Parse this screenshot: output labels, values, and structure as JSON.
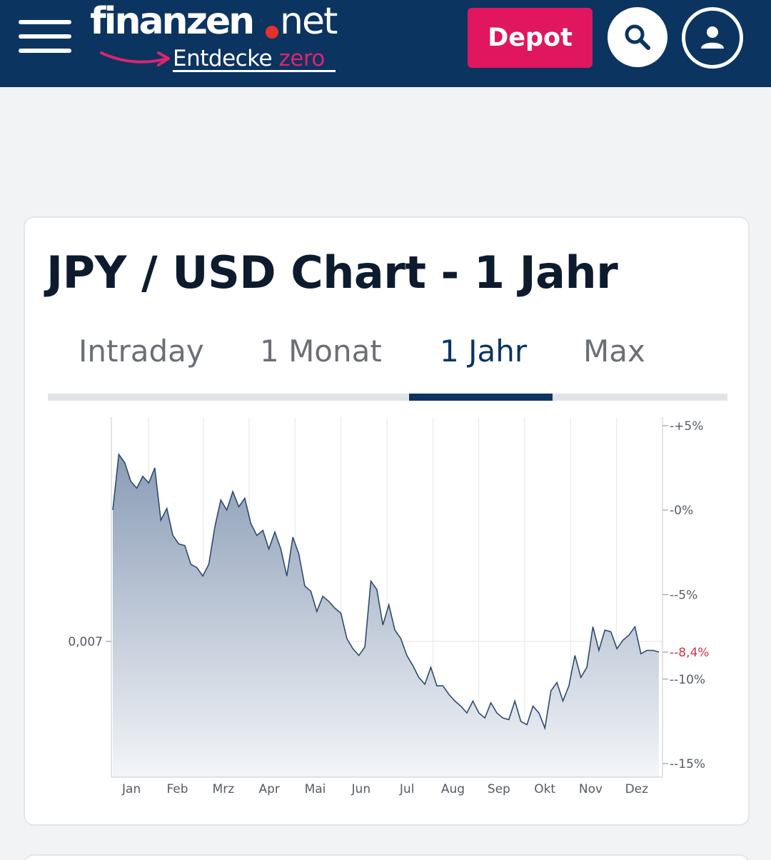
{
  "header": {
    "menu_icon": "hamburger-menu-icon",
    "logo": {
      "brand": "finanzen",
      "tld": "net",
      "tagline_prefix": "Entdecke ",
      "tagline_accent": "zero"
    },
    "depot_label": "Depot",
    "search_icon": "search-icon",
    "user_icon": "user-icon",
    "colors": {
      "bar": "#0b3461",
      "depot": "#e0175f",
      "accent": "#e4312b"
    }
  },
  "card": {
    "title": "JPY / USD Chart - 1 Jahr",
    "tabs": [
      {
        "label": "Intraday",
        "active": false
      },
      {
        "label": "1 Monat",
        "active": false
      },
      {
        "label": "1 Jahr",
        "active": true
      },
      {
        "label": "Max",
        "active": false
      }
    ]
  },
  "chart_data": {
    "type": "area",
    "title": "",
    "xlabel": "",
    "ylabel": "",
    "x_ticks": [
      "Jan",
      "Feb",
      "Mrz",
      "Apr",
      "Mai",
      "Jun",
      "Jul",
      "Aug",
      "Sep",
      "Okt",
      "Nov",
      "Dez"
    ],
    "left_ticks": [
      "0,007"
    ],
    "right_ticks": [
      "+5%",
      "0%",
      "-5%",
      "-10%",
      "-15%"
    ],
    "right_ylim": [
      -15.8,
      5.5
    ],
    "current_change_label": "-8,4%",
    "current_change": -8.4,
    "grid": true,
    "colors": {
      "line": "#2f4a6d",
      "fill_top": "#8a9cb6",
      "fill_bottom": "#f3f5f8",
      "current_label": "#d0344b"
    },
    "x": [
      "Jan 01",
      "Jan 04",
      "Jan 08",
      "Jan 12",
      "Jan 16",
      "Jan 20",
      "Jan 24",
      "Jan 28",
      "Feb 01",
      "Feb 05",
      "Feb 09",
      "Feb 13",
      "Feb 17",
      "Feb 21",
      "Feb 25",
      "Mrz 01",
      "Mrz 05",
      "Mrz 09",
      "Mrz 13",
      "Mrz 17",
      "Mrz 21",
      "Mrz 25",
      "Mrz 29",
      "Apr 02",
      "Apr 06",
      "Apr 10",
      "Apr 14",
      "Apr 18",
      "Apr 22",
      "Apr 26",
      "Apr 30",
      "Mai 04",
      "Mai 08",
      "Mai 12",
      "Mai 16",
      "Mai 20",
      "Mai 24",
      "Mai 28",
      "Jun 01",
      "Jun 05",
      "Jun 09",
      "Jun 13",
      "Jun 17",
      "Jun 21",
      "Jun 25",
      "Jun 29",
      "Jul 03",
      "Jul 07",
      "Jul 11",
      "Jul 15",
      "Jul 19",
      "Jul 23",
      "Jul 27",
      "Jul 31",
      "Aug 04",
      "Aug 08",
      "Aug 12",
      "Aug 16",
      "Aug 20",
      "Aug 24",
      "Aug 28",
      "Sep 01",
      "Sep 05",
      "Sep 09",
      "Sep 13",
      "Sep 17",
      "Sep 21",
      "Sep 25",
      "Sep 29",
      "Okt 03",
      "Okt 07",
      "Okt 11",
      "Okt 15",
      "Okt 19",
      "Okt 23",
      "Okt 27",
      "Okt 31",
      "Nov 04",
      "Nov 08",
      "Nov 12",
      "Nov 16",
      "Nov 20",
      "Nov 24",
      "Nov 28",
      "Dez 02",
      "Dez 06",
      "Dez 10",
      "Dez 14",
      "Dez 18",
      "Dez 22",
      "Dez 26",
      "Dez 29"
    ],
    "values": [
      0.0,
      3.3,
      2.8,
      1.7,
      1.3,
      2.0,
      1.6,
      2.5,
      -0.6,
      0.1,
      -1.5,
      -2.0,
      -2.1,
      -3.2,
      -3.4,
      -3.9,
      -3.2,
      -1.0,
      0.6,
      0.0,
      1.1,
      0.2,
      0.7,
      -0.8,
      -1.5,
      -1.2,
      -2.3,
      -1.3,
      -2.3,
      -3.9,
      -1.6,
      -2.6,
      -4.5,
      -4.8,
      -6.0,
      -5.1,
      -5.4,
      -5.8,
      -6.1,
      -7.6,
      -8.2,
      -8.6,
      -8.1,
      -4.2,
      -4.7,
      -6.8,
      -5.6,
      -7.1,
      -7.6,
      -8.6,
      -9.2,
      -9.9,
      -10.3,
      -9.3,
      -10.4,
      -10.4,
      -10.9,
      -11.3,
      -11.6,
      -12.0,
      -11.3,
      -12.0,
      -12.3,
      -11.4,
      -12.0,
      -12.3,
      -12.4,
      -11.3,
      -12.5,
      -12.7,
      -11.6,
      -12.0,
      -12.9,
      -10.7,
      -10.2,
      -11.3,
      -10.4,
      -8.6,
      -9.9,
      -9.3,
      -6.9,
      -8.3,
      -7.1,
      -7.2,
      -8.2,
      -7.7,
      -7.4,
      -6.9,
      -8.5,
      -8.3,
      -8.3,
      -8.4
    ]
  }
}
